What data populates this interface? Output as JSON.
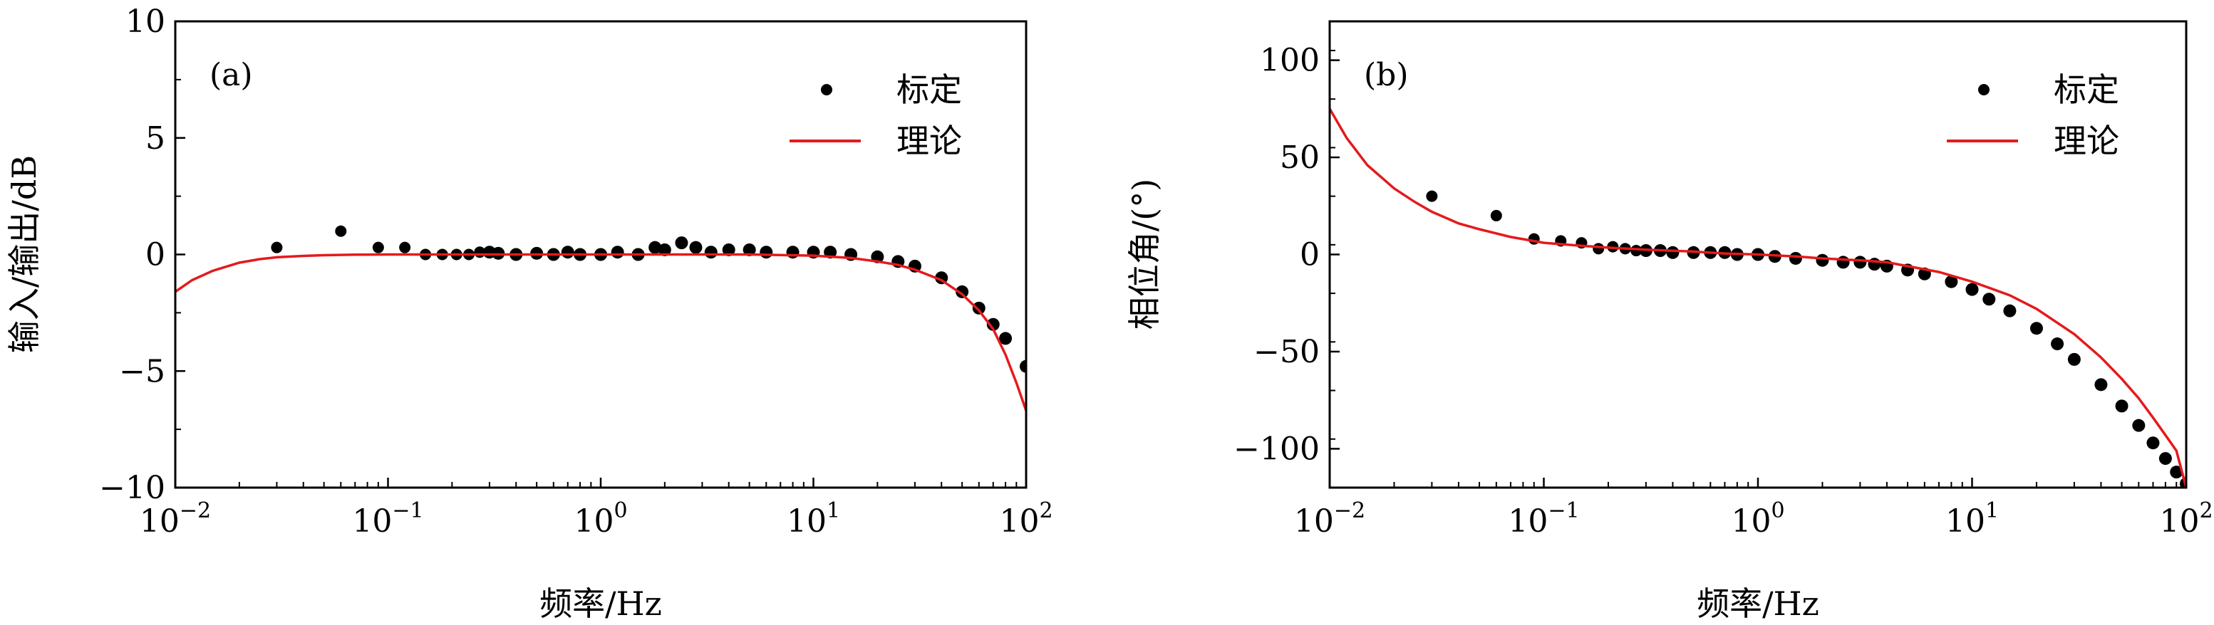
{
  "chart_data": [
    {
      "type": "scatter",
      "panel_label": "(a)",
      "xlabel": "频率/Hz",
      "ylabel": "输入/输出/dB",
      "x_scale": "log",
      "xlim": [
        0.01,
        100
      ],
      "ylim": [
        -10,
        10
      ],
      "x_ticks": [
        {
          "base": "10",
          "exp": "−2"
        },
        {
          "base": "10",
          "exp": "−1"
        },
        {
          "base": "10",
          "exp": "0"
        },
        {
          "base": "10",
          "exp": "1"
        },
        {
          "base": "10",
          "exp": "2"
        }
      ],
      "y_ticks": [
        10,
        5,
        0,
        -5,
        -10
      ],
      "y_tick_labels": [
        "10",
        "5",
        "0",
        "−5",
        "−10"
      ],
      "grid": false,
      "legend_position": "top-right",
      "series": [
        {
          "name": "标定",
          "kind": "points",
          "color": "#000000",
          "x": [
            0.03,
            0.06,
            0.09,
            0.12,
            0.15,
            0.18,
            0.21,
            0.24,
            0.27,
            0.3,
            0.33,
            0.4,
            0.5,
            0.6,
            0.7,
            0.8,
            1.0,
            1.2,
            1.5,
            1.8,
            2.0,
            2.4,
            2.8,
            3.3,
            4.0,
            5.0,
            6.0,
            8.0,
            10,
            12,
            15,
            20,
            25,
            30,
            40,
            50,
            60,
            70,
            80,
            100
          ],
          "y": [
            0.3,
            1.0,
            0.3,
            0.3,
            0.0,
            0.0,
            0.0,
            0.0,
            0.1,
            0.1,
            0.05,
            0.0,
            0.05,
            0.0,
            0.1,
            0.0,
            0.0,
            0.1,
            0.0,
            0.3,
            0.2,
            0.5,
            0.3,
            0.1,
            0.2,
            0.2,
            0.1,
            0.1,
            0.1,
            0.1,
            0.0,
            -0.1,
            -0.3,
            -0.5,
            -1.0,
            -1.6,
            -2.3,
            -3.0,
            -3.6,
            -4.8
          ]
        },
        {
          "name": "理论",
          "kind": "line",
          "color": "#e41a1c",
          "x": [
            0.01,
            0.012,
            0.015,
            0.02,
            0.025,
            0.03,
            0.04,
            0.05,
            0.07,
            0.1,
            0.2,
            0.5,
            1,
            2,
            5,
            10,
            15,
            20,
            25,
            30,
            40,
            50,
            60,
            70,
            80,
            90,
            100
          ],
          "y": [
            -1.6,
            -1.1,
            -0.7,
            -0.35,
            -0.2,
            -0.12,
            -0.06,
            -0.03,
            -0.01,
            0.0,
            0.0,
            0.0,
            0.0,
            0.0,
            0.0,
            -0.05,
            -0.15,
            -0.3,
            -0.45,
            -0.65,
            -1.1,
            -1.7,
            -2.4,
            -3.2,
            -4.3,
            -5.5,
            -6.7
          ]
        }
      ]
    },
    {
      "type": "scatter",
      "panel_label": "(b)",
      "xlabel": "频率/Hz",
      "ylabel": "相位角/(°)",
      "x_scale": "log",
      "xlim": [
        0.01,
        100
      ],
      "ylim": [
        -120,
        120
      ],
      "x_ticks": [
        {
          "base": "10",
          "exp": "−2"
        },
        {
          "base": "10",
          "exp": "−1"
        },
        {
          "base": "10",
          "exp": "0"
        },
        {
          "base": "10",
          "exp": "1"
        },
        {
          "base": "10",
          "exp": "2"
        }
      ],
      "y_ticks": [
        100,
        50,
        0,
        -50,
        -100
      ],
      "y_tick_labels": [
        "100",
        "50",
        "0",
        "−50",
        "−100"
      ],
      "grid": false,
      "legend_position": "top-right",
      "series": [
        {
          "name": "标定",
          "kind": "points",
          "color": "#000000",
          "x": [
            0.03,
            0.06,
            0.09,
            0.12,
            0.15,
            0.18,
            0.21,
            0.24,
            0.27,
            0.3,
            0.35,
            0.4,
            0.5,
            0.6,
            0.7,
            0.8,
            1.0,
            1.2,
            1.5,
            2.0,
            2.5,
            3.0,
            3.5,
            4.0,
            5.0,
            6.0,
            8.0,
            10,
            12,
            15,
            20,
            25,
            30,
            40,
            50,
            60,
            70,
            80,
            90,
            100
          ],
          "y": [
            30,
            20,
            8,
            7,
            6,
            3,
            4,
            3,
            2,
            2,
            2,
            1,
            1,
            1,
            1,
            0,
            0,
            -1,
            -2,
            -3,
            -4,
            -4,
            -5,
            -6,
            -8,
            -10,
            -14,
            -18,
            -23,
            -29,
            -38,
            -46,
            -54,
            -67,
            -78,
            -88,
            -97,
            -105,
            -112,
            -118
          ]
        },
        {
          "name": "理论",
          "kind": "line",
          "color": "#e41a1c",
          "x": [
            0.01,
            0.012,
            0.015,
            0.02,
            0.025,
            0.03,
            0.04,
            0.05,
            0.07,
            0.1,
            0.15,
            0.2,
            0.3,
            0.5,
            0.7,
            1,
            1.5,
            2,
            3,
            4,
            5,
            7,
            10,
            15,
            20,
            30,
            40,
            50,
            60,
            70,
            80,
            90,
            100
          ],
          "y": [
            75,
            60,
            46,
            34,
            27,
            22,
            16,
            13,
            9,
            6,
            4.5,
            3.5,
            2.5,
            1.5,
            0.5,
            0,
            -1,
            -2,
            -3,
            -4,
            -6,
            -9,
            -14,
            -21,
            -28,
            -41,
            -53,
            -64,
            -74,
            -84,
            -93,
            -101,
            -120
          ]
        }
      ]
    }
  ]
}
